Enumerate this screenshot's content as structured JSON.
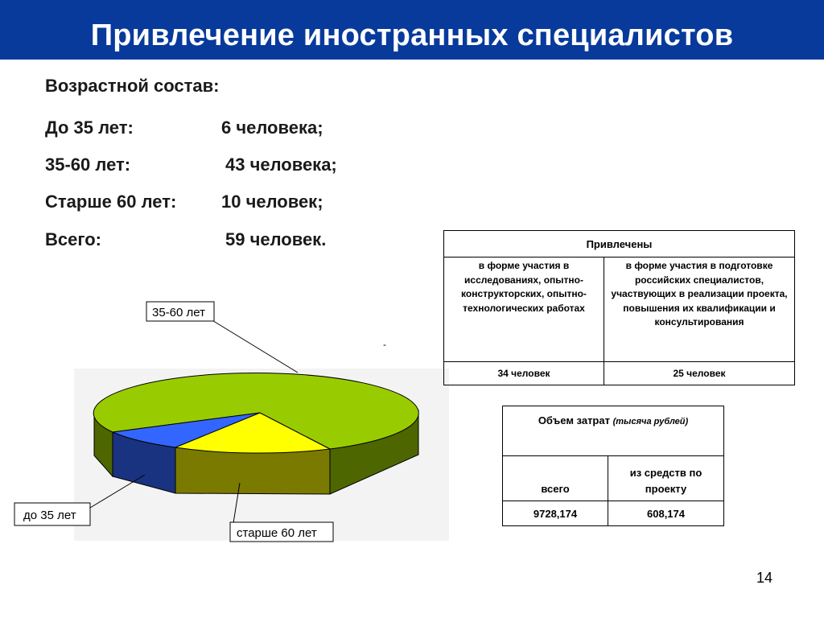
{
  "slide": {
    "title": "Привлечение иностранных специалистов",
    "page_number": "14"
  },
  "age": {
    "heading": "Возрастной состав:",
    "rows": [
      {
        "label": "До 35 лет:",
        "value": "6 человека;"
      },
      {
        "label": "35-60 лет:",
        "value": "43 человека;"
      },
      {
        "label": "Старше 60 лет:",
        "value": "10 человек;"
      },
      {
        "label": "Всего:",
        "value": "59 человек."
      }
    ]
  },
  "chart_data": {
    "type": "pie",
    "style": "3d",
    "slices": [
      {
        "label": "35-60 лет",
        "value": 43,
        "color": "#99cc00"
      },
      {
        "label": "до 35 лет",
        "value": 6,
        "color": "#3366ff"
      },
      {
        "label": "старше 60 лет",
        "value": 10,
        "color": "#ffff00"
      }
    ],
    "callout_marker": "-"
  },
  "table_attracted": {
    "header": "Привлечены",
    "columns": [
      "в форме участия в исследованиях, опытно-конструкторских, опытно-технологических работах",
      "в форме участия в подготовке российских специалистов, участвующих в реализации проекта, повышения их квалификации и консультирования"
    ],
    "values": [
      "34 человек",
      "25 человек"
    ]
  },
  "table_costs": {
    "header": "Объем затрат",
    "header_unit": "(тысяча рублей)",
    "columns": [
      "всего",
      "из средств по проекту"
    ],
    "values": [
      "9728,174",
      "608,174"
    ]
  }
}
